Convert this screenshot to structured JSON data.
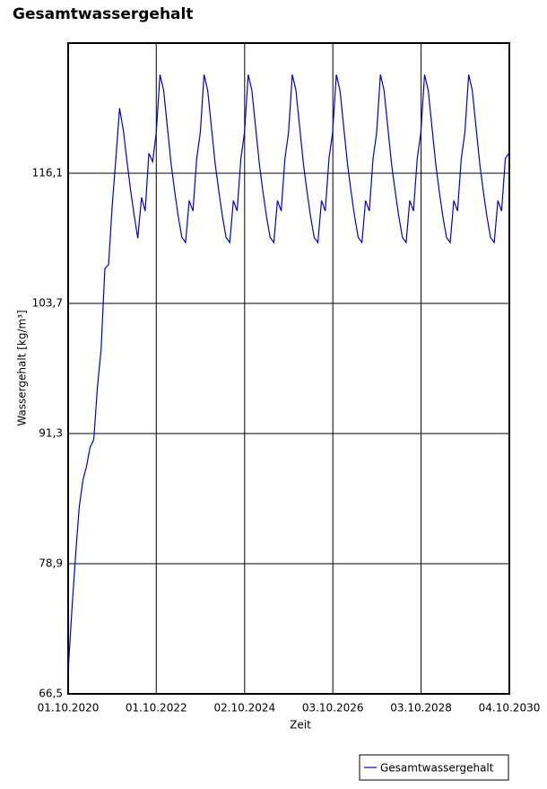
{
  "chart_data": {
    "type": "line",
    "title": "Gesamtwassergehalt",
    "x_label": "Zeit",
    "y_label": "Wassergehalt [kg/m³]",
    "x": [
      "2020-10-01",
      "2020-11-01",
      "2020-12-01",
      "2021-01-01",
      "2021-02-01",
      "2021-03-01",
      "2021-04-01",
      "2021-05-01",
      "2021-06-01",
      "2021-07-01",
      "2021-08-01",
      "2021-09-01",
      "2021-10-01",
      "2021-11-01",
      "2021-12-01",
      "2022-01-01",
      "2022-02-01",
      "2022-03-01",
      "2022-04-01",
      "2022-05-01",
      "2022-06-01",
      "2022-07-01",
      "2022-08-01",
      "2022-09-01",
      "2022-10-01",
      "2022-11-01",
      "2022-12-01",
      "2023-01-01",
      "2023-02-01",
      "2023-03-01",
      "2023-04-01",
      "2023-05-01",
      "2023-06-01",
      "2023-07-01",
      "2023-08-01",
      "2023-09-01",
      "2023-10-01",
      "2023-11-01",
      "2023-12-01",
      "2024-01-01",
      "2024-02-01",
      "2024-03-01",
      "2024-04-01",
      "2024-05-01",
      "2024-06-01",
      "2024-07-01",
      "2024-08-01",
      "2024-09-01",
      "2024-10-01",
      "2024-11-01",
      "2024-12-01",
      "2025-01-01",
      "2025-02-01",
      "2025-03-01",
      "2025-04-01",
      "2025-05-01",
      "2025-06-01",
      "2025-07-01",
      "2025-08-01",
      "2025-09-01",
      "2025-10-01",
      "2025-11-01",
      "2025-12-01",
      "2026-01-01",
      "2026-02-01",
      "2026-03-01",
      "2026-04-01",
      "2026-05-01",
      "2026-06-01",
      "2026-07-01",
      "2026-08-01",
      "2026-09-01",
      "2026-10-01",
      "2026-11-01",
      "2026-12-01",
      "2027-01-01",
      "2027-02-01",
      "2027-03-01",
      "2027-04-01",
      "2027-05-01",
      "2027-06-01",
      "2027-07-01",
      "2027-08-01",
      "2027-09-01",
      "2027-10-01",
      "2027-11-01",
      "2027-12-01",
      "2028-01-01",
      "2028-02-01",
      "2028-03-01",
      "2028-04-01",
      "2028-05-01",
      "2028-06-01",
      "2028-07-01",
      "2028-08-01",
      "2028-09-01",
      "2028-10-01",
      "2028-11-01",
      "2028-12-01",
      "2029-01-01",
      "2029-02-01",
      "2029-03-01",
      "2029-04-01",
      "2029-05-01",
      "2029-06-01",
      "2029-07-01",
      "2029-08-01",
      "2029-09-01",
      "2029-10-01",
      "2029-11-01",
      "2029-12-01",
      "2030-01-01",
      "2030-02-01",
      "2030-03-01",
      "2030-04-01",
      "2030-05-01",
      "2030-06-01",
      "2030-07-01",
      "2030-08-01",
      "2030-09-01",
      "2030-10-01"
    ],
    "series": [
      {
        "name": "Gesamtwassergehalt",
        "color": "#0000cc",
        "values": [
          68.6,
          74.5,
          79.6,
          84.3,
          86.9,
          88.1,
          90.0,
          90.7,
          95.8,
          99.3,
          107.0,
          107.4,
          113.0,
          117.6,
          122.3,
          120.2,
          117.2,
          114.6,
          112.1,
          109.9,
          113.8,
          112.5,
          118.0,
          117.2,
          120.0,
          125.5,
          124.0,
          120.5,
          117.0,
          114.5,
          112.0,
          110.0,
          109.5,
          113.5,
          112.5,
          117.5,
          120.0,
          125.5,
          124.0,
          120.5,
          117.0,
          114.5,
          112.0,
          110.0,
          109.5,
          113.5,
          112.5,
          117.5,
          120.0,
          125.5,
          124.0,
          120.5,
          117.0,
          114.5,
          112.0,
          110.0,
          109.5,
          113.5,
          112.5,
          117.5,
          120.0,
          125.5,
          124.0,
          120.5,
          117.0,
          114.5,
          112.0,
          110.0,
          109.5,
          113.5,
          112.5,
          117.5,
          120.0,
          125.5,
          124.0,
          120.5,
          117.0,
          114.5,
          112.0,
          110.0,
          109.5,
          113.5,
          112.5,
          117.5,
          120.0,
          125.5,
          124.0,
          120.5,
          117.0,
          114.5,
          112.0,
          110.0,
          109.5,
          113.5,
          112.5,
          117.5,
          120.0,
          125.5,
          124.0,
          120.5,
          117.0,
          114.5,
          112.0,
          110.0,
          109.5,
          113.5,
          112.5,
          117.5,
          120.0,
          125.5,
          124.0,
          120.5,
          117.0,
          114.5,
          112.0,
          110.0,
          109.5,
          113.5,
          112.5,
          117.5,
          118.0
        ]
      }
    ],
    "xlim": [
      "2020-10-01",
      "2030-10-04"
    ],
    "xticks": [
      {
        "value": "2020-10-01",
        "label": "01.10.2020"
      },
      {
        "value": "2022-10-01",
        "label": "01.10.2022"
      },
      {
        "value": "2024-10-02",
        "label": "02.10.2024"
      },
      {
        "value": "2026-10-03",
        "label": "03.10.2026"
      },
      {
        "value": "2028-10-03",
        "label": "03.10.2028"
      },
      {
        "value": "2030-10-04",
        "label": "04.10.2030"
      }
    ],
    "ylim": [
      66.5,
      128.5
    ],
    "yticks": [
      {
        "value": 66.5,
        "label": "66,5"
      },
      {
        "value": 78.9,
        "label": "78,9"
      },
      {
        "value": 91.3,
        "label": "91,3"
      },
      {
        "value": 103.7,
        "label": "103,7"
      },
      {
        "value": 116.1,
        "label": "116,1"
      }
    ],
    "grid": true,
    "legend": "bottom-right"
  }
}
